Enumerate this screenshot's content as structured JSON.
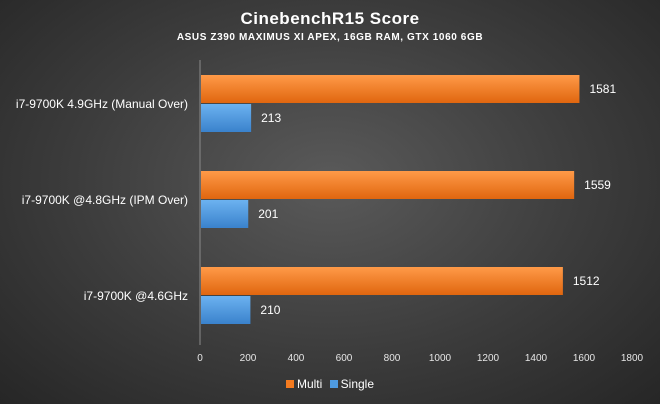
{
  "chart_data": {
    "type": "bar",
    "orientation": "horizontal",
    "title": "CinebenchR15  Score",
    "subtitle": "ASUS Z390 MAXIMUS XI APEX, 16GB RAM, GTX 1060 6GB",
    "categories": [
      "i7-9700K 4.9GHz (Manual Over)",
      "i7-9700K @4.8GHz (IPM Over)",
      "i7-9700K @4.6GHz"
    ],
    "series": [
      {
        "name": "Multi",
        "values": [
          1581,
          1559,
          1512
        ],
        "color": "#f47b20"
      },
      {
        "name": "Single",
        "values": [
          213,
          201,
          210
        ],
        "color": "#4e9ae0"
      }
    ],
    "xlim": [
      0,
      1800
    ],
    "xticks": [
      "0",
      "200",
      "400",
      "600",
      "800",
      "1000",
      "1200",
      "1400",
      "1600",
      "1800"
    ],
    "legend_position": "bottom",
    "grid": false
  }
}
